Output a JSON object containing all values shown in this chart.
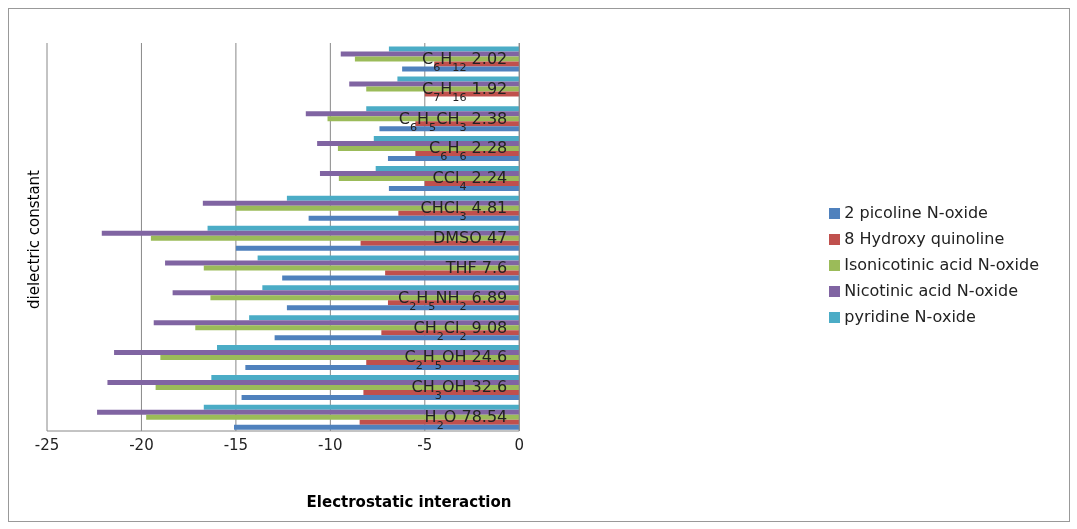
{
  "chart_data": {
    "type": "bar",
    "orientation": "horizontal",
    "xlabel": "Electrostatic interaction",
    "ylabel": "dielectric constant",
    "categories": [
      "C$_{6}$H$_{12}$ 2.02",
      "C$_{7}$H$_{16}$ 1.92",
      "C$_{6}$H$_{5}$CH$_{3}$ 2.38",
      "C$_{6}$H$_{6}$ 2.28",
      "CCl$_{4}$ 2.24",
      "CHCl$_{3}$ 4.81",
      "DMSO 47",
      "THF 7.6",
      "C$_{2}$H$_{5}$NH$_{2}$ 6.89",
      "CH$_{2}$Cl$_{2}$ 9.08",
      "C$_{2}$H$_{5}$OH 24.6",
      "CH$_{3}$OH 32.6",
      "H$_{2}$O 78.54"
    ],
    "series": [
      {
        "name": "pyridine N-oxide",
        "color": "#4bacc6",
        "values": [
          -6.9,
          -6.45,
          -8.1,
          -7.7,
          -7.6,
          -12.3,
          -16.5,
          -13.85,
          -13.6,
          -14.3,
          -16.0,
          -16.3,
          -16.7
        ]
      },
      {
        "name": "Nicotinic acid N-oxide",
        "color": "#8064a2",
        "values": [
          -9.45,
          -9.0,
          -11.3,
          -10.7,
          -10.55,
          -16.75,
          -22.1,
          -18.75,
          -18.35,
          -19.35,
          -21.45,
          -21.8,
          -22.35
        ]
      },
      {
        "name": "Isonicotinic acid N-oxide",
        "color": "#9bbb59",
        "values": [
          -8.7,
          -8.1,
          -10.15,
          -9.6,
          -9.55,
          -15.0,
          -19.5,
          -16.7,
          -16.35,
          -17.15,
          -19.0,
          -19.25,
          -19.75
        ]
      },
      {
        "name": "8 Hydroxy quinoline",
        "color": "#c0504d",
        "values": [
          -4.5,
          -5.0,
          -5.5,
          -5.5,
          -5.0,
          -6.4,
          -8.4,
          -7.1,
          -6.95,
          -7.3,
          -8.1,
          -8.25,
          -8.45
        ]
      },
      {
        "name": "2 picoline N-oxide",
        "color": "#4f81bd",
        "values": [
          -6.2,
          null,
          -7.4,
          -6.95,
          -6.9,
          -11.15,
          -15.0,
          -12.55,
          -12.3,
          -12.95,
          -14.5,
          -14.7,
          -15.1
        ]
      }
    ],
    "xlim": [
      -25,
      0
    ],
    "xticks": [
      -25,
      -20,
      -15,
      -10,
      -5,
      0
    ],
    "grid": "x",
    "legend": "right"
  }
}
